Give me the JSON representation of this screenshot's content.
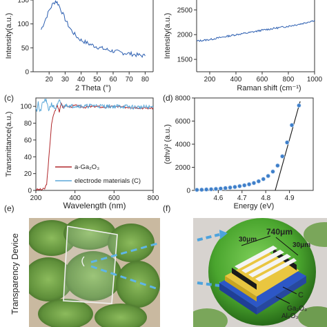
{
  "panels": {
    "c": "(c)",
    "d": "(d)",
    "e": "(e)",
    "f": "(f)"
  },
  "photo_e": {
    "side_label": "Transparency Device"
  },
  "schematic_f": {
    "dim_a": "30μm",
    "dim_b": "740μm",
    "dim_c": "30μm",
    "layer_c": "C",
    "layer_ga": "Ga₂O₃",
    "layer_al": "Al₂O₃"
  },
  "colors": {
    "xrd_line": "#2a5db0",
    "raman_line": "#2a5db0",
    "ga2o3_line": "#b0262a",
    "electrode_line": "#5aa7d8",
    "tauc_marker": "#3f7fc9",
    "tauc_fit": "#111111",
    "leaf_green": "#5f8f3a",
    "sphere_green": "#4aa52e"
  },
  "chart_data": [
    {
      "id": "a",
      "type": "line",
      "title": "",
      "xlabel": "2 Theta (°)",
      "ylabel": "Intensity(a.u.)",
      "xlim": [
        10,
        85
      ],
      "ylim": [
        0,
        150
      ],
      "xticks": [
        "20",
        "30",
        "40",
        "50",
        "60",
        "70",
        "80"
      ],
      "yticks": [
        "0",
        "50",
        "100",
        "150"
      ],
      "series": [
        {
          "x": [
            15,
            18,
            20,
            22,
            24,
            25,
            26,
            28,
            30,
            32,
            34,
            36,
            38,
            40,
            45,
            50,
            55,
            60,
            65,
            70,
            75,
            80
          ],
          "y": [
            88,
            112,
            128,
            140,
            148,
            145,
            140,
            125,
            110,
            97,
            86,
            78,
            71,
            66,
            58,
            52,
            47,
            43,
            40,
            38,
            35,
            33
          ]
        }
      ]
    },
    {
      "id": "b",
      "type": "line",
      "title": "",
      "xlabel": "Raman shift (cm⁻¹)",
      "ylabel": "Intensity(a.u.)",
      "xlim": [
        100,
        1000
      ],
      "ylim": [
        1250,
        2700
      ],
      "xticks": [
        "200",
        "400",
        "600",
        "800",
        "1000"
      ],
      "yticks": [
        "1500",
        "2000",
        "2500"
      ],
      "series": [
        {
          "x": [
            100,
            200,
            300,
            400,
            500,
            600,
            700,
            800,
            900,
            1000
          ],
          "y": [
            1870,
            1900,
            1950,
            2000,
            2040,
            2090,
            2130,
            2170,
            2220,
            2290
          ]
        }
      ]
    },
    {
      "id": "c",
      "type": "line",
      "title": "",
      "xlabel": "Wavelength (nm)",
      "ylabel": "Transmittance(a.u.)",
      "xlim": [
        200,
        800
      ],
      "ylim": [
        0,
        110
      ],
      "xticks": [
        "200",
        "400",
        "600",
        "800"
      ],
      "yticks": [
        "0",
        "20",
        "40",
        "60",
        "80",
        "100"
      ],
      "legend": "bottom-left",
      "series": [
        {
          "name": "a-Ga₂O₃",
          "x": [
            200,
            230,
            245,
            255,
            262,
            270,
            280,
            290,
            300,
            310,
            320,
            330,
            340,
            350,
            370,
            400,
            450,
            500,
            550,
            600,
            650,
            700,
            750,
            800
          ],
          "y": [
            1,
            1,
            2,
            8,
            25,
            50,
            78,
            90,
            96,
            101,
            94,
            105,
            97,
            102,
            99,
            101,
            99,
            100,
            99,
            100,
            99,
            99,
            98,
            98
          ]
        },
        {
          "name": "electrode materials (C)",
          "x": [
            200,
            205,
            212,
            220,
            235,
            250,
            265,
            280,
            300,
            320,
            340,
            360,
            380,
            400,
            450,
            500,
            550,
            600,
            650,
            700,
            750,
            800
          ],
          "y": [
            100,
            95,
            105,
            92,
            104,
            108,
            96,
            103,
            97,
            106,
            99,
            102,
            100,
            101,
            100,
            101,
            100,
            100,
            100,
            99,
            99,
            99
          ]
        }
      ]
    },
    {
      "id": "d",
      "type": "scatter",
      "title": "",
      "xlabel": "Energy (eV)",
      "ylabel": "(αhν)² (a.u.)",
      "xlim": [
        4.5,
        5.0
      ],
      "ylim": [
        0,
        8000
      ],
      "xticks": [
        "4.6",
        "4.7",
        "4.8",
        "4.9"
      ],
      "yticks": [
        "0",
        "2000",
        "4000",
        "6000",
        "8000"
      ],
      "points": {
        "x": [
          4.51,
          4.53,
          4.55,
          4.57,
          4.59,
          4.61,
          4.63,
          4.65,
          4.67,
          4.69,
          4.71,
          4.73,
          4.75,
          4.77,
          4.79,
          4.81,
          4.83,
          4.85,
          4.87,
          4.89,
          4.91,
          4.94
        ],
        "y": [
          50,
          60,
          80,
          100,
          130,
          160,
          200,
          250,
          300,
          370,
          440,
          530,
          640,
          790,
          980,
          1250,
          1630,
          2150,
          2950,
          4150,
          5650,
          7350
        ]
      },
      "fit_line": {
        "x": [
          4.84,
          4.945
        ],
        "y": [
          0,
          7700
        ]
      }
    }
  ]
}
